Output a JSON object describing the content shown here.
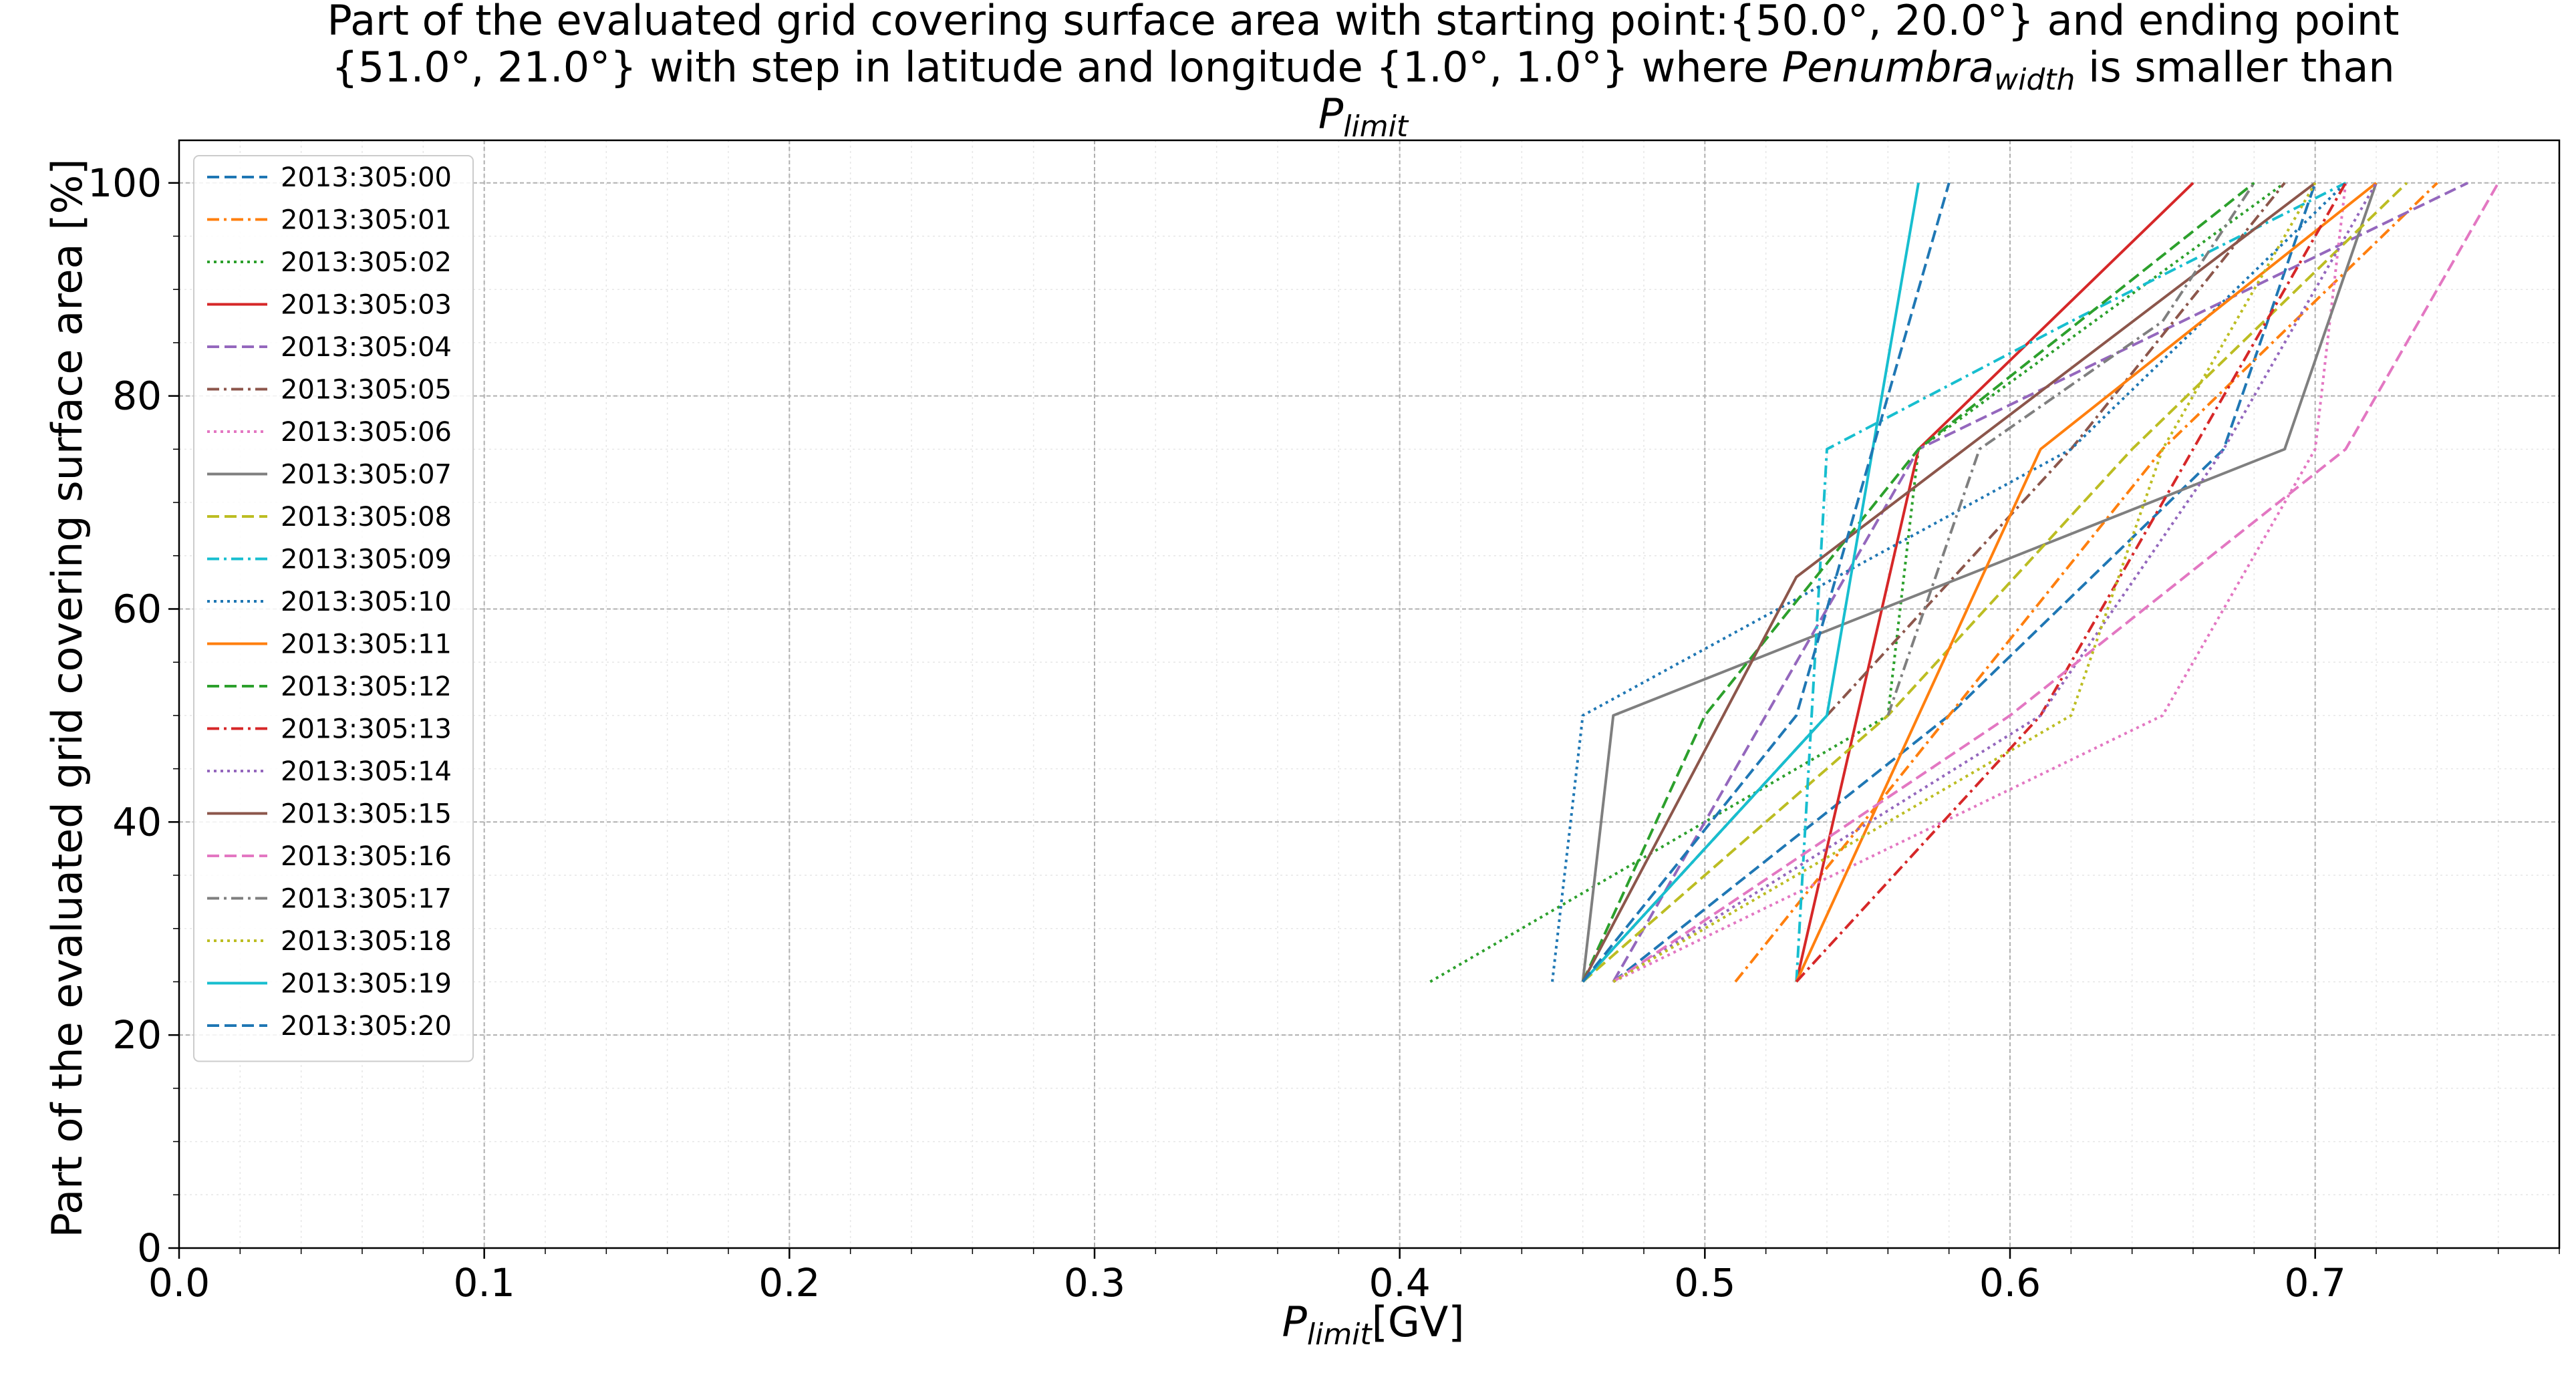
{
  "chart_data": {
    "type": "line",
    "title_lines": [
      "Part of the evaluated grid covering surface area with starting point:{50.0°, 20.0°} and ending point",
      "{51.0°, 21.0°} with step in latitude and longitude {1.0°, 1.0°} where Penumbra_width is smaller than",
      "P_limit"
    ],
    "title_parts": {
      "line2_prefix": "{51.0°, 21.0°} with step in latitude and longitude {1.0°, 1.0°} where ",
      "penumbra": "Penumbra",
      "width_sub": "width",
      "line2_suffix": " is smaller than",
      "p": "P",
      "limit_sub": "limit"
    },
    "xlabel_parts": {
      "p": "P",
      "sub": "limit",
      "unit": "[GV]"
    },
    "ylabel": "Part of the evaluated grid covering surface area  [%]",
    "xlim": [
      0.0,
      0.78
    ],
    "ylim": [
      0,
      104
    ],
    "xticks": [
      0.0,
      0.1,
      0.2,
      0.3,
      0.4,
      0.5,
      0.6,
      0.7
    ],
    "xtick_labels": [
      "0.0",
      "0.1",
      "0.2",
      "0.3",
      "0.4",
      "0.5",
      "0.6",
      "0.7"
    ],
    "yticks": [
      0,
      20,
      40,
      60,
      80,
      100
    ],
    "ytick_labels": [
      "0",
      "20",
      "40",
      "60",
      "80",
      "100"
    ],
    "grid": true,
    "minor_grid": true,
    "legend_position": "upper-left",
    "series": [
      {
        "name": "2013:305:00",
        "color": "#1f77b4",
        "dash": "dashed",
        "x": [
          0.47,
          0.58,
          0.67,
          0.7
        ],
        "y": [
          25,
          50,
          75,
          100
        ]
      },
      {
        "name": "2013:305:01",
        "color": "#ff7f0e",
        "dash": "dashdot",
        "x": [
          0.51,
          0.58,
          0.65,
          0.74
        ],
        "y": [
          25,
          50,
          75,
          100
        ]
      },
      {
        "name": "2013:305:02",
        "color": "#2ca02c",
        "dash": "dotted",
        "x": [
          0.41,
          0.56,
          0.57,
          0.69
        ],
        "y": [
          25,
          50,
          75,
          100
        ]
      },
      {
        "name": "2013:305:03",
        "color": "#d62728",
        "dash": "solid",
        "x": [
          0.53,
          0.57,
          0.66
        ],
        "y": [
          25,
          75,
          100
        ]
      },
      {
        "name": "2013:305:04",
        "color": "#9467bd",
        "dash": "dashed",
        "x": [
          0.47,
          0.57,
          0.75
        ],
        "y": [
          25,
          75,
          100
        ]
      },
      {
        "name": "2013:305:05",
        "color": "#8c564b",
        "dash": "dashdot",
        "x": [
          0.46,
          0.62,
          0.69
        ],
        "y": [
          25,
          75,
          100
        ]
      },
      {
        "name": "2013:305:06",
        "color": "#e377c2",
        "dash": "dotted",
        "x": [
          0.47,
          0.65,
          0.7,
          0.71
        ],
        "y": [
          25,
          50,
          75,
          100
        ]
      },
      {
        "name": "2013:305:07",
        "color": "#7f7f7f",
        "dash": "solid",
        "x": [
          0.46,
          0.47,
          0.69,
          0.72
        ],
        "y": [
          25,
          50,
          75,
          100
        ]
      },
      {
        "name": "2013:305:08",
        "color": "#bcbd22",
        "dash": "dashed",
        "x": [
          0.46,
          0.56,
          0.64,
          0.73
        ],
        "y": [
          25,
          50,
          75,
          100
        ]
      },
      {
        "name": "2013:305:09",
        "color": "#17becf",
        "dash": "dashdot",
        "x": [
          0.53,
          0.54,
          0.62,
          0.71
        ],
        "y": [
          25,
          75,
          87,
          100
        ]
      },
      {
        "name": "2013:305:10",
        "color": "#1f77b4",
        "dash": "dotted",
        "x": [
          0.45,
          0.46,
          0.62,
          0.71
        ],
        "y": [
          25,
          50,
          75,
          100
        ]
      },
      {
        "name": "2013:305:11",
        "color": "#ff7f0e",
        "dash": "solid",
        "x": [
          0.53,
          0.61,
          0.72
        ],
        "y": [
          25,
          75,
          100
        ]
      },
      {
        "name": "2013:305:12",
        "color": "#2ca02c",
        "dash": "dashed",
        "x": [
          0.46,
          0.5,
          0.57,
          0.68
        ],
        "y": [
          25,
          50,
          75,
          100
        ]
      },
      {
        "name": "2013:305:13",
        "color": "#d62728",
        "dash": "dashdot",
        "x": [
          0.53,
          0.61,
          0.66,
          0.71
        ],
        "y": [
          25,
          50,
          75,
          100
        ]
      },
      {
        "name": "2013:305:14",
        "color": "#9467bd",
        "dash": "dotted",
        "x": [
          0.47,
          0.61,
          0.67,
          0.72
        ],
        "y": [
          25,
          50,
          75,
          100
        ]
      },
      {
        "name": "2013:305:15",
        "color": "#8c564b",
        "dash": "solid",
        "x": [
          0.46,
          0.53,
          0.7
        ],
        "y": [
          25,
          63,
          100
        ]
      },
      {
        "name": "2013:305:16",
        "color": "#e377c2",
        "dash": "dashed",
        "x": [
          0.47,
          0.6,
          0.71,
          0.76
        ],
        "y": [
          25,
          50,
          75,
          100
        ]
      },
      {
        "name": "2013:305:17",
        "color": "#7f7f7f",
        "dash": "dashdot",
        "x": [
          0.56,
          0.59,
          0.65,
          0.68
        ],
        "y": [
          50,
          75,
          87,
          100
        ]
      },
      {
        "name": "2013:305:18",
        "color": "#bcbd22",
        "dash": "dotted",
        "x": [
          0.47,
          0.62,
          0.65,
          0.7
        ],
        "y": [
          25,
          50,
          75,
          100
        ]
      },
      {
        "name": "2013:305:19",
        "color": "#17becf",
        "dash": "solid",
        "x": [
          0.46,
          0.54,
          0.57
        ],
        "y": [
          25,
          50,
          100
        ]
      },
      {
        "name": "2013:305:20",
        "color": "#1f77b4",
        "dash": "dashed",
        "x": [
          0.46,
          0.53,
          0.58
        ],
        "y": [
          25,
          50,
          100
        ]
      }
    ]
  }
}
